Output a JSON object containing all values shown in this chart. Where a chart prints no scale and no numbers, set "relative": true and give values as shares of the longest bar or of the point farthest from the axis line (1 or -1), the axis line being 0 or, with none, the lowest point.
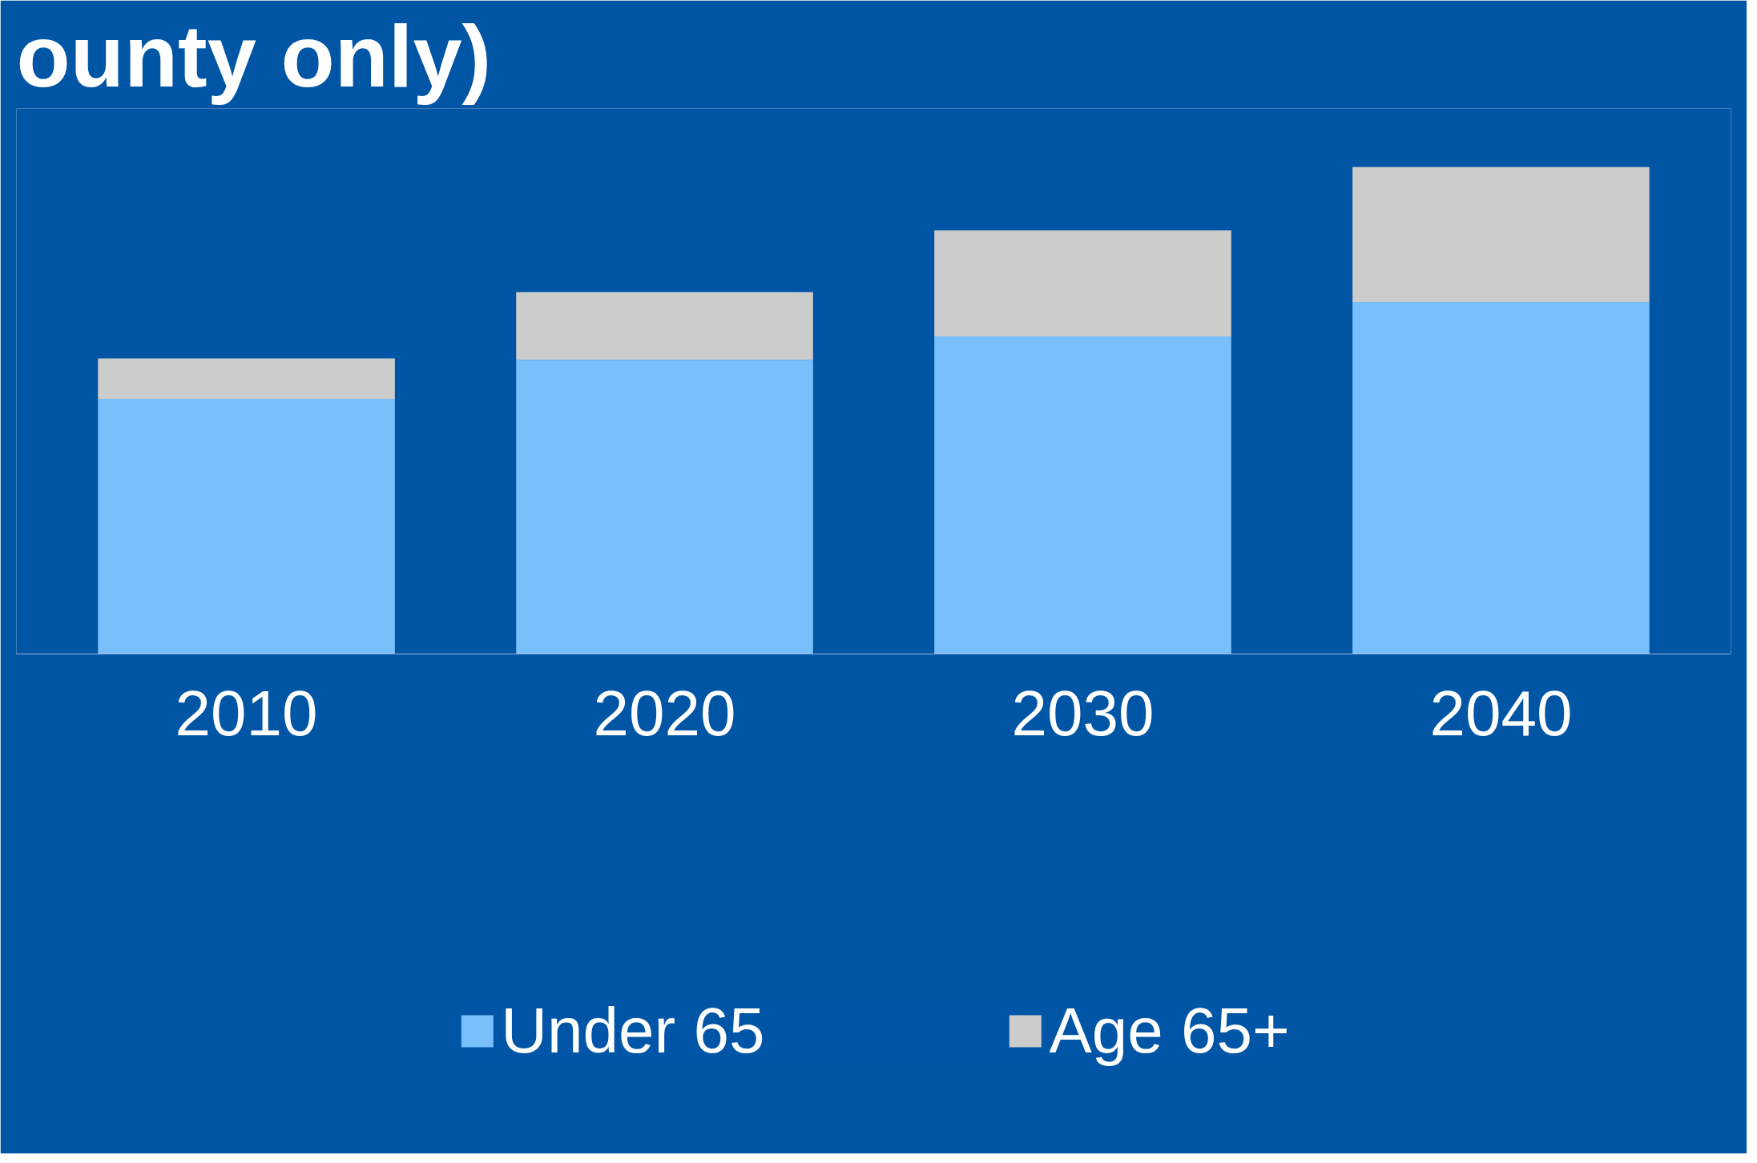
{
  "chart_data": {
    "type": "bar",
    "title": "ounty only)",
    "stacked": true,
    "relative": true,
    "categories": [
      "2010",
      "2020",
      "2030",
      "2040"
    ],
    "series": [
      {
        "name": "Under 65",
        "color": "#77c0fb",
        "values": [
          0.524,
          0.604,
          0.652,
          0.723
        ]
      },
      {
        "name": "Age 65+",
        "color": "#cccccc",
        "values": [
          0.083,
          0.139,
          0.218,
          0.277
        ]
      }
    ],
    "legend": "bottom",
    "grid": false
  }
}
